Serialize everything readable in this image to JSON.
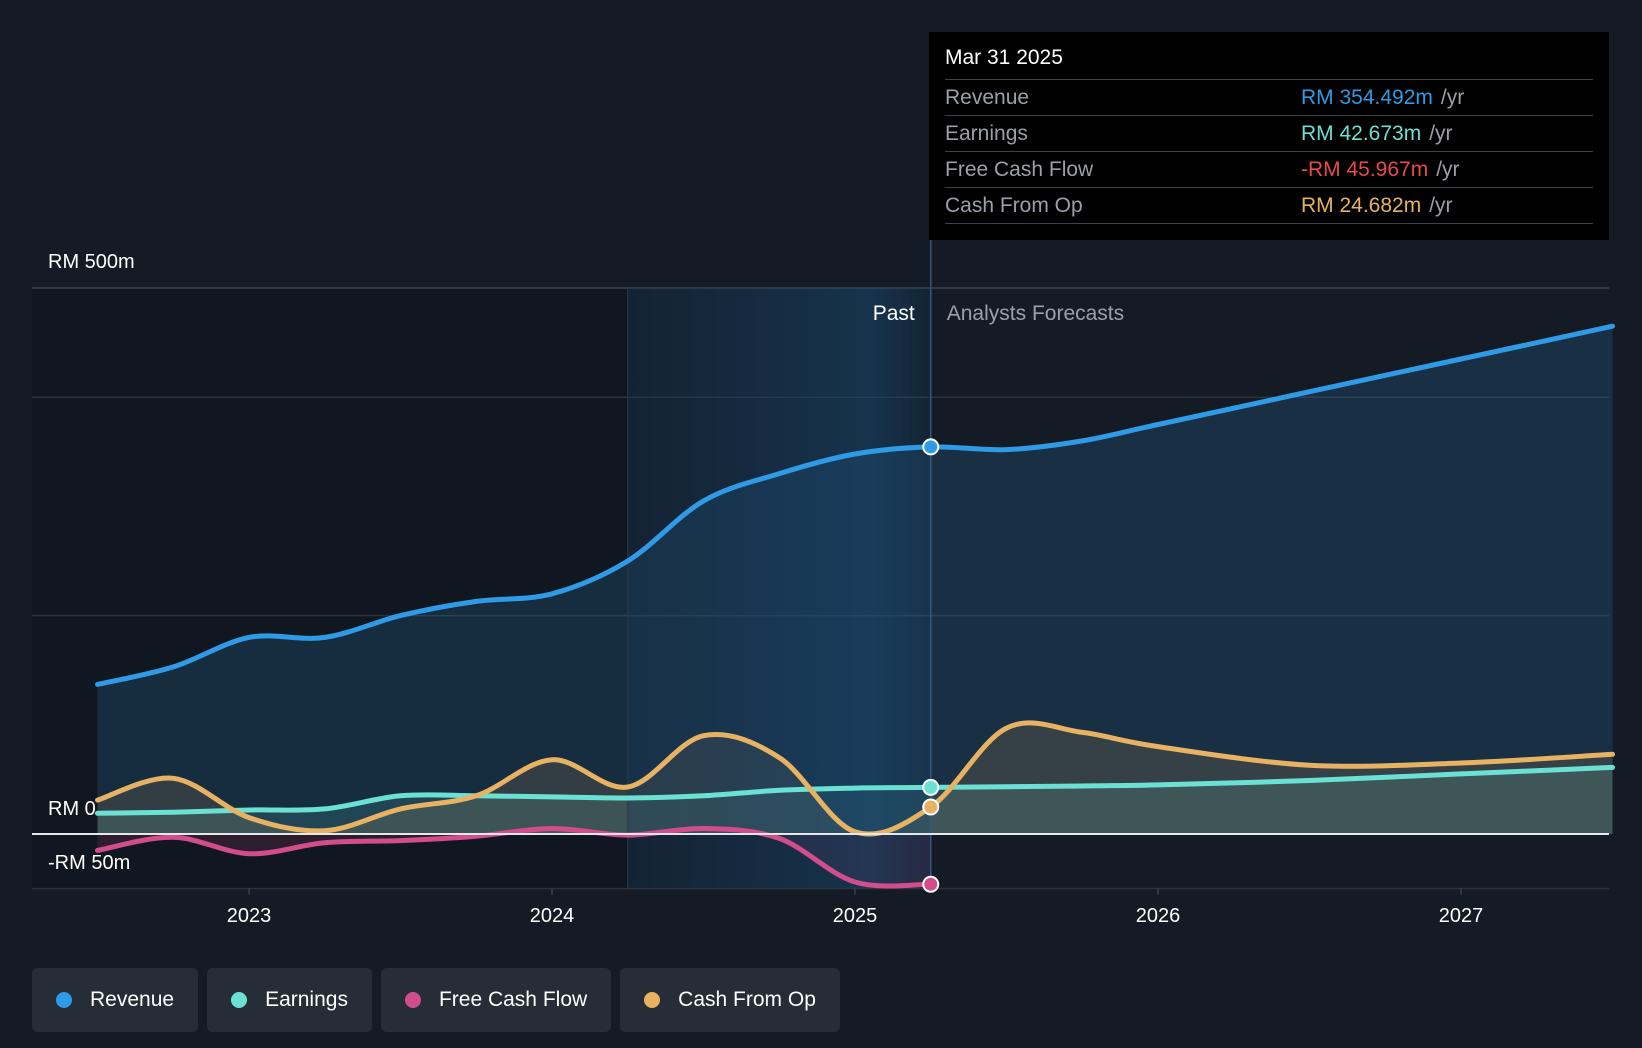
{
  "chart_data": {
    "type": "line",
    "y_axis": {
      "top_label": "RM 500m",
      "zero_label": "RM 0",
      "bottom_label": "-RM 50m",
      "ylim": [
        -50,
        500
      ]
    },
    "x_ticks": [
      "2023",
      "2024",
      "2025",
      "2026",
      "2027"
    ],
    "divider": {
      "past_label": "Past",
      "forecast_label": "Analysts Forecasts",
      "date": 2025.25
    },
    "series": [
      {
        "name": "Revenue",
        "color": "#2f9be6",
        "points": [
          [
            2022.5,
            137
          ],
          [
            2022.75,
            153
          ],
          [
            2023.0,
            180
          ],
          [
            2023.25,
            180
          ],
          [
            2023.5,
            200
          ],
          [
            2023.75,
            213
          ],
          [
            2024.0,
            220
          ],
          [
            2024.25,
            250
          ],
          [
            2024.5,
            305
          ],
          [
            2024.75,
            330
          ],
          [
            2025.0,
            348
          ],
          [
            2025.25,
            354.5
          ],
          [
            2025.5,
            352
          ],
          [
            2025.75,
            360
          ],
          [
            2026.0,
            375
          ],
          [
            2026.5,
            405
          ],
          [
            2027.0,
            435
          ],
          [
            2027.5,
            465
          ]
        ]
      },
      {
        "name": "Earnings",
        "color": "#6be1d3",
        "points": [
          [
            2022.5,
            19
          ],
          [
            2022.75,
            20
          ],
          [
            2023.0,
            22
          ],
          [
            2023.25,
            23
          ],
          [
            2023.5,
            35
          ],
          [
            2023.75,
            35
          ],
          [
            2024.0,
            34
          ],
          [
            2024.25,
            33
          ],
          [
            2024.5,
            35
          ],
          [
            2024.75,
            40
          ],
          [
            2025.0,
            42
          ],
          [
            2025.25,
            42.7
          ],
          [
            2025.75,
            44
          ],
          [
            2026.0,
            45
          ],
          [
            2026.5,
            49
          ],
          [
            2027.0,
            55
          ],
          [
            2027.5,
            61
          ]
        ]
      },
      {
        "name": "Free Cash Flow",
        "color": "#d24d8c",
        "points": [
          [
            2022.5,
            -15
          ],
          [
            2022.75,
            -3
          ],
          [
            2023.0,
            -18
          ],
          [
            2023.25,
            -8
          ],
          [
            2023.5,
            -6
          ],
          [
            2023.75,
            -2
          ],
          [
            2024.0,
            5
          ],
          [
            2024.25,
            -1
          ],
          [
            2024.5,
            5
          ],
          [
            2024.75,
            -4
          ],
          [
            2025.0,
            -44
          ],
          [
            2025.25,
            -46
          ]
        ]
      },
      {
        "name": "Cash From Op",
        "color": "#e8b263",
        "points": [
          [
            2022.5,
            31
          ],
          [
            2022.75,
            51
          ],
          [
            2023.0,
            15
          ],
          [
            2023.25,
            3
          ],
          [
            2023.5,
            23
          ],
          [
            2023.75,
            35
          ],
          [
            2024.0,
            68
          ],
          [
            2024.25,
            43
          ],
          [
            2024.5,
            90
          ],
          [
            2024.75,
            70
          ],
          [
            2025.0,
            2
          ],
          [
            2025.25,
            24.7
          ],
          [
            2025.5,
            97
          ],
          [
            2025.75,
            93
          ],
          [
            2026.0,
            80
          ],
          [
            2026.5,
            63
          ],
          [
            2027.0,
            65
          ],
          [
            2027.5,
            73
          ]
        ]
      }
    ]
  },
  "tooltip": {
    "date": "Mar 31 2025",
    "rows": [
      {
        "label": "Revenue",
        "value": "RM 354.492m",
        "unit": "/yr",
        "color": "#2f9be6"
      },
      {
        "label": "Earnings",
        "value": "RM 42.673m",
        "unit": "/yr",
        "color": "#6be1d3"
      },
      {
        "label": "Free Cash Flow",
        "value": "-RM 45.967m",
        "unit": "/yr",
        "color": "#e84a4a"
      },
      {
        "label": "Cash From Op",
        "value": "RM 24.682m",
        "unit": "/yr",
        "color": "#e8b263"
      }
    ]
  },
  "legend": [
    {
      "label": "Revenue",
      "color": "#2f9be6"
    },
    {
      "label": "Earnings",
      "color": "#6be1d3"
    },
    {
      "label": "Free Cash Flow",
      "color": "#d24d8c"
    },
    {
      "label": "Cash From Op",
      "color": "#e8b263"
    }
  ]
}
